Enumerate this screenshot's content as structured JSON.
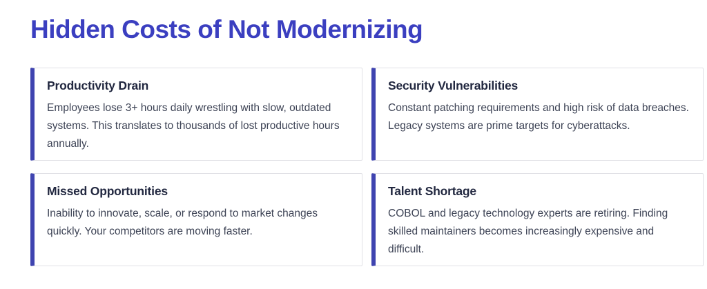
{
  "header": {
    "title": "Hidden Costs of Not Modernizing"
  },
  "colors": {
    "heading": "#3b3fc0",
    "card-accent": "#3f44b0",
    "card-title": "#222840",
    "card-body": "#3d4355",
    "card-border": "#e0e0e5",
    "background": "#ffffff"
  },
  "cards": [
    {
      "title": "Productivity Drain",
      "body": "Employees lose 3+ hours daily wrestling with slow, outdated systems. This translates to thousands of lost productive hours annually."
    },
    {
      "title": "Security Vulnerabilities",
      "body": "Constant patching requirements and high risk of data breaches. Legacy systems are prime targets for cyberattacks."
    },
    {
      "title": "Missed Opportunities",
      "body": "Inability to innovate, scale, or respond to market changes quickly. Your competitors are moving faster."
    },
    {
      "title": "Talent Shortage",
      "body": "COBOL and legacy technology experts are retiring. Finding skilled maintainers becomes increasingly expensive and difficult."
    }
  ]
}
